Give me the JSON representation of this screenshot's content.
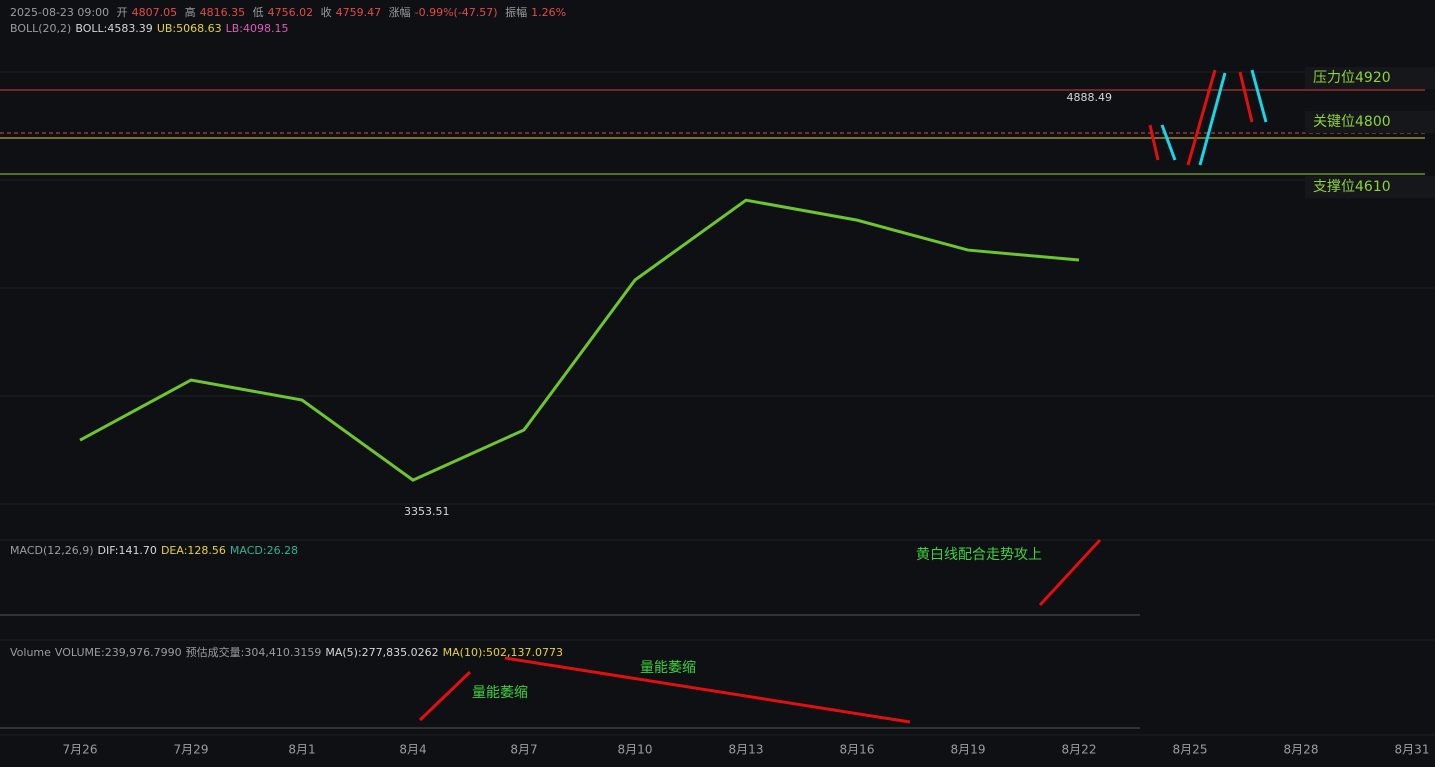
{
  "header": {
    "time": "2025-08-23 09:00",
    "open_label": "开",
    "open": "4807.05",
    "high_label": "高",
    "high": "4816.35",
    "low_label": "低",
    "low": "4756.02",
    "close_label": "收",
    "close": "4759.47",
    "change_label": "涨幅",
    "change": "-0.99%(-47.57)",
    "amplitude_label": "振幅",
    "amplitude": "1.26%"
  },
  "boll": {
    "name": "BOLL(20,2)",
    "mid": "BOLL:4583.39",
    "ub": "UB:5068.63",
    "lb": "LB:4098.15"
  },
  "macd": {
    "name": "MACD(12,26,9)",
    "dif": "DIF:141.70",
    "dea": "DEA:128.56",
    "macd": "MACD:26.28"
  },
  "volume": {
    "name": "Volume",
    "volume": "VOLUME:239,976.7990",
    "estimate": "预估成交量:304,410.3159",
    "ma5": "MA(5):277,835.0262",
    "ma10": "MA(10):502,137.0773"
  },
  "annotations": {
    "resistance": "压力位4920",
    "key": "关键位4800",
    "support": "支撑位4610",
    "macd_note": "黄白线配合走势攻上",
    "volume_note_1": "量能萎缩",
    "volume_note_2": "量能萎缩"
  },
  "chart_data": {
    "type": "line",
    "categories": [
      "7月26",
      "7月29",
      "8月1",
      "8月4",
      "8月7",
      "8月10",
      "8月13",
      "8月16",
      "8月19",
      "8月22",
      "8月25",
      "8月28",
      "8月31"
    ],
    "series": [
      {
        "color": "#6fc52f",
        "values": [
          3620,
          3843,
          3769,
          3472,
          3658,
          4214,
          4510,
          4436,
          4325,
          4288,
          null,
          null,
          null
        ]
      }
    ],
    "ylim": [
      3287,
      5104
    ],
    "extremes": [
      4888.49,
      3353.51
    ]
  }
}
